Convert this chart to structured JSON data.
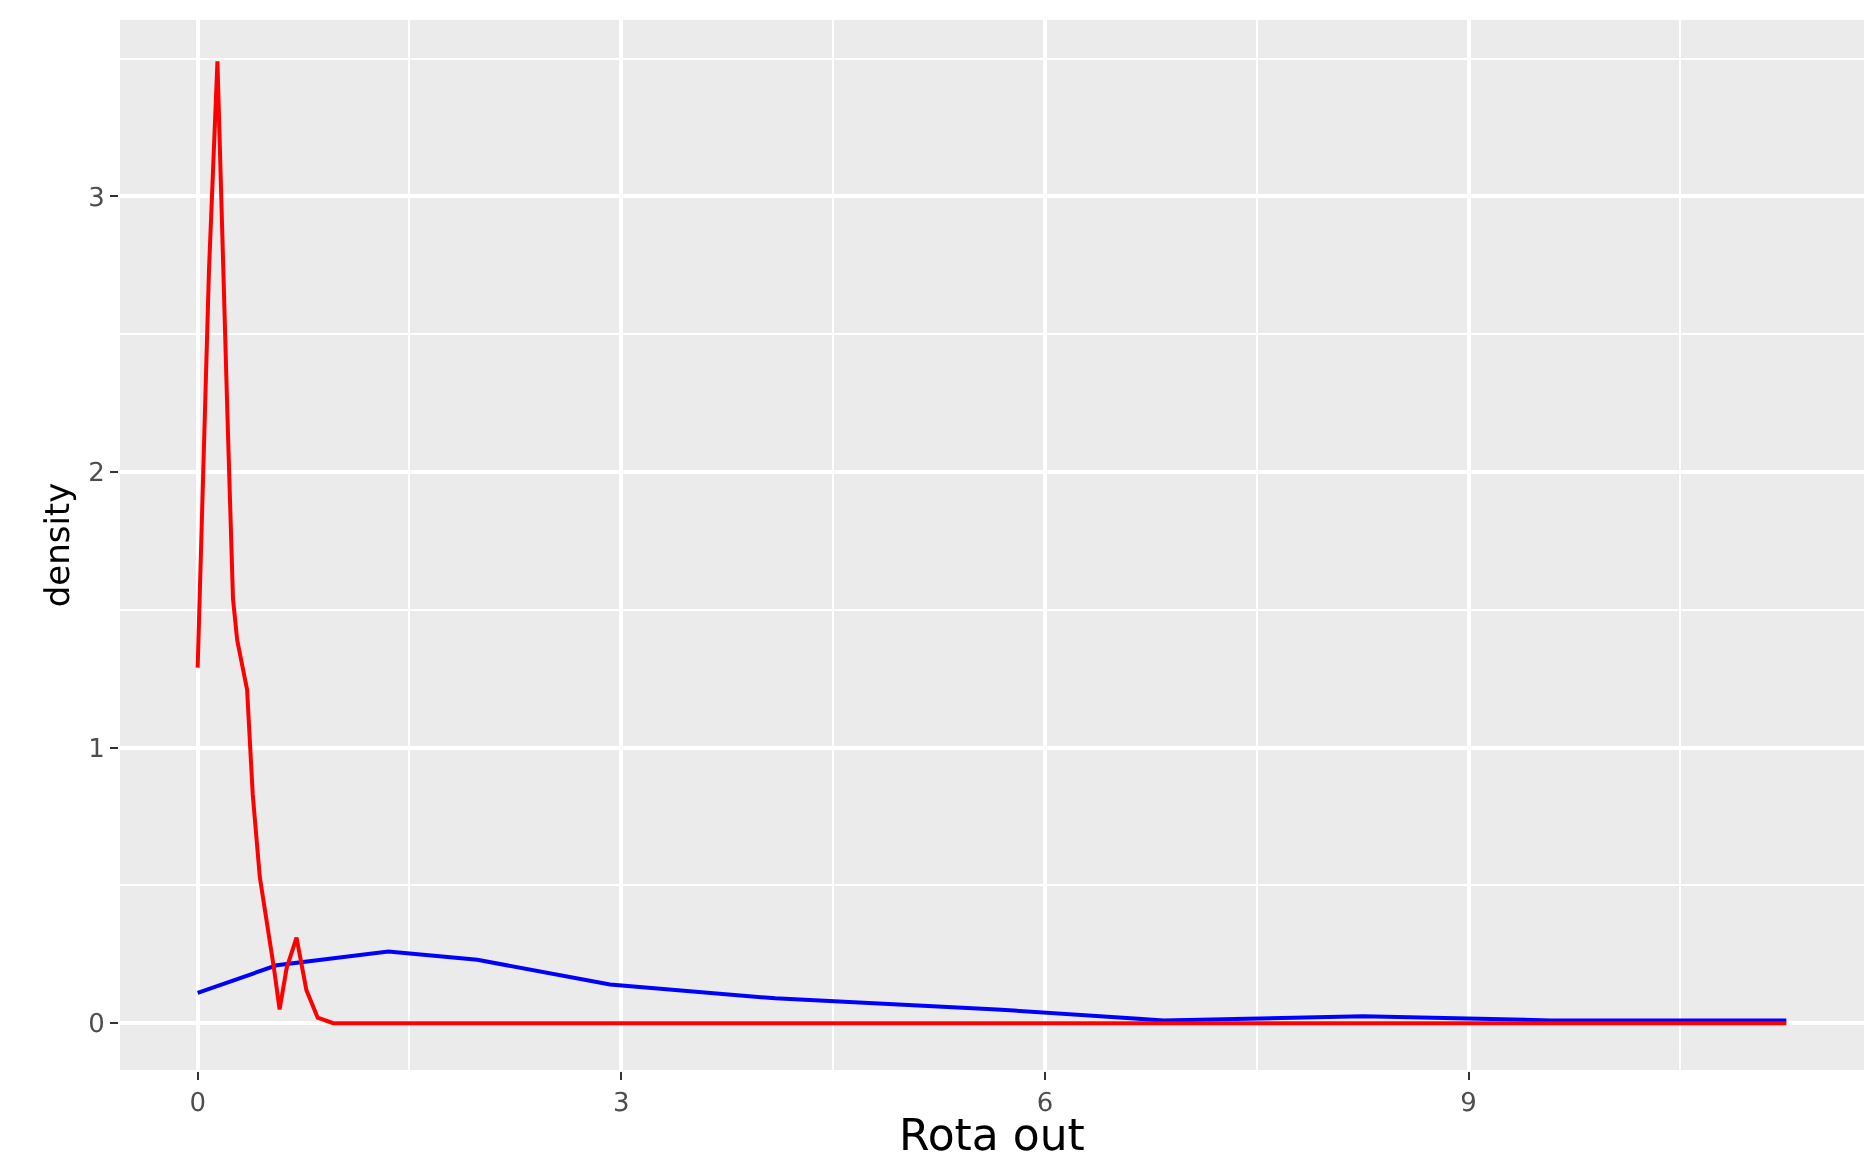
{
  "chart_data": {
    "type": "line",
    "xlabel": "Rota out",
    "ylabel": "density",
    "xlim": [
      -0.55,
      11.8
    ],
    "ylim": [
      -0.17,
      3.64
    ],
    "xticks": [
      0,
      3,
      6,
      9
    ],
    "yticks": [
      0,
      1,
      2,
      3
    ],
    "grid": true,
    "marker": "none",
    "line_style": "solid",
    "series": [
      {
        "color": "#0000ff",
        "x": [
          0,
          0.56,
          1.35,
          1.98,
          2.92,
          4.09,
          5.66,
          6.84,
          8.25,
          9.58,
          11.25
        ],
        "values": [
          0.11,
          0.21,
          0.26,
          0.23,
          0.14,
          0.09,
          0.05,
          0.01,
          0.025,
          0.01,
          0.01
        ]
      },
      {
        "color": "#ff0000",
        "x": [
          0,
          0.08,
          0.14,
          0.21,
          0.25,
          0.28,
          0.35,
          0.39,
          0.44,
          0.54,
          0.58,
          0.63,
          0.7,
          0.77,
          0.85,
          0.96,
          11.25
        ],
        "values": [
          1.29,
          2.73,
          3.49,
          2.22,
          1.54,
          1.39,
          1.21,
          0.83,
          0.53,
          0.2,
          0.05,
          0.2,
          0.31,
          0.12,
          0.02,
          0,
          0
        ]
      }
    ]
  }
}
